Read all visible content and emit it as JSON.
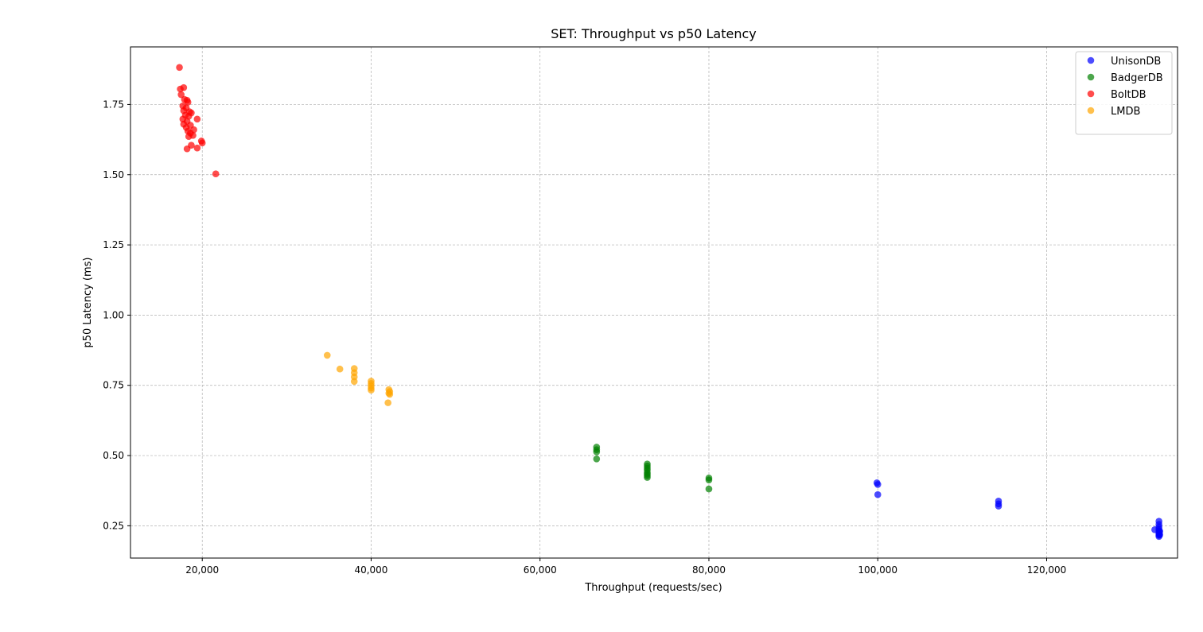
{
  "chart_data": {
    "type": "scatter",
    "title": "SET: Throughput vs p50 Latency",
    "xlabel": "Throughput (requests/sec)",
    "ylabel": "p50 Latency (ms)",
    "xlim": [
      11500,
      135500
    ],
    "ylim": [
      0.135,
      1.955
    ],
    "xticks": [
      20000,
      40000,
      60000,
      80000,
      100000,
      120000
    ],
    "xtick_labels": [
      "20,000",
      "40,000",
      "60,000",
      "80,000",
      "100,000",
      "120,000"
    ],
    "yticks": [
      0.25,
      0.5,
      0.75,
      1.0,
      1.25,
      1.5,
      1.75
    ],
    "ytick_labels": [
      "0.25",
      "0.50",
      "0.75",
      "1.00",
      "1.25",
      "1.50",
      "1.75"
    ],
    "grid": true,
    "legend_position": "top-right",
    "series": [
      {
        "name": "UnisonDB",
        "color": "#0000ff",
        "points": [
          [
            99900,
            0.403
          ],
          [
            100000,
            0.397
          ],
          [
            100000,
            0.361
          ],
          [
            114300,
            0.338
          ],
          [
            114300,
            0.328
          ],
          [
            114300,
            0.32
          ],
          [
            132800,
            0.236
          ],
          [
            133300,
            0.266
          ],
          [
            133300,
            0.255
          ],
          [
            133300,
            0.246
          ],
          [
            133300,
            0.238
          ],
          [
            133300,
            0.232
          ],
          [
            133300,
            0.226
          ],
          [
            133300,
            0.221
          ],
          [
            133300,
            0.216
          ],
          [
            133300,
            0.212
          ],
          [
            133400,
            0.23
          ],
          [
            133400,
            0.218
          ]
        ]
      },
      {
        "name": "BadgerDB",
        "color": "#008000",
        "points": [
          [
            66700,
            0.53
          ],
          [
            66700,
            0.521
          ],
          [
            66700,
            0.513
          ],
          [
            66700,
            0.488
          ],
          [
            72700,
            0.47
          ],
          [
            72700,
            0.463
          ],
          [
            72700,
            0.455
          ],
          [
            72700,
            0.448
          ],
          [
            72700,
            0.44
          ],
          [
            72700,
            0.434
          ],
          [
            72700,
            0.428
          ],
          [
            72700,
            0.422
          ],
          [
            80000,
            0.42
          ],
          [
            80000,
            0.413
          ],
          [
            80000,
            0.381
          ]
        ]
      },
      {
        "name": "BoltDB",
        "color": "#ff0000",
        "points": [
          [
            17300,
            1.882
          ],
          [
            17400,
            1.805
          ],
          [
            17800,
            1.81
          ],
          [
            17500,
            1.785
          ],
          [
            17900,
            1.768
          ],
          [
            18200,
            1.765
          ],
          [
            18300,
            1.758
          ],
          [
            17700,
            1.745
          ],
          [
            18100,
            1.738
          ],
          [
            17800,
            1.728
          ],
          [
            18500,
            1.724
          ],
          [
            18700,
            1.72
          ],
          [
            18000,
            1.712
          ],
          [
            18400,
            1.708
          ],
          [
            17700,
            1.698
          ],
          [
            19400,
            1.698
          ],
          [
            18200,
            1.69
          ],
          [
            17800,
            1.68
          ],
          [
            18600,
            1.676
          ],
          [
            18100,
            1.668
          ],
          [
            19000,
            1.66
          ],
          [
            18300,
            1.655
          ],
          [
            18600,
            1.648
          ],
          [
            18900,
            1.64
          ],
          [
            18400,
            1.636
          ],
          [
            19900,
            1.62
          ],
          [
            20000,
            1.613
          ],
          [
            18700,
            1.605
          ],
          [
            19400,
            1.595
          ],
          [
            18200,
            1.592
          ],
          [
            21600,
            1.503
          ]
        ]
      },
      {
        "name": "LMDB",
        "color": "#ffa500",
        "points": [
          [
            34800,
            0.857
          ],
          [
            36300,
            0.808
          ],
          [
            38000,
            0.81
          ],
          [
            38000,
            0.795
          ],
          [
            38000,
            0.78
          ],
          [
            38000,
            0.764
          ],
          [
            40000,
            0.765
          ],
          [
            40000,
            0.757
          ],
          [
            40000,
            0.748
          ],
          [
            40000,
            0.74
          ],
          [
            40000,
            0.733
          ],
          [
            42100,
            0.735
          ],
          [
            42200,
            0.728
          ],
          [
            42100,
            0.722
          ],
          [
            42200,
            0.718
          ],
          [
            42000,
            0.688
          ]
        ]
      }
    ]
  }
}
